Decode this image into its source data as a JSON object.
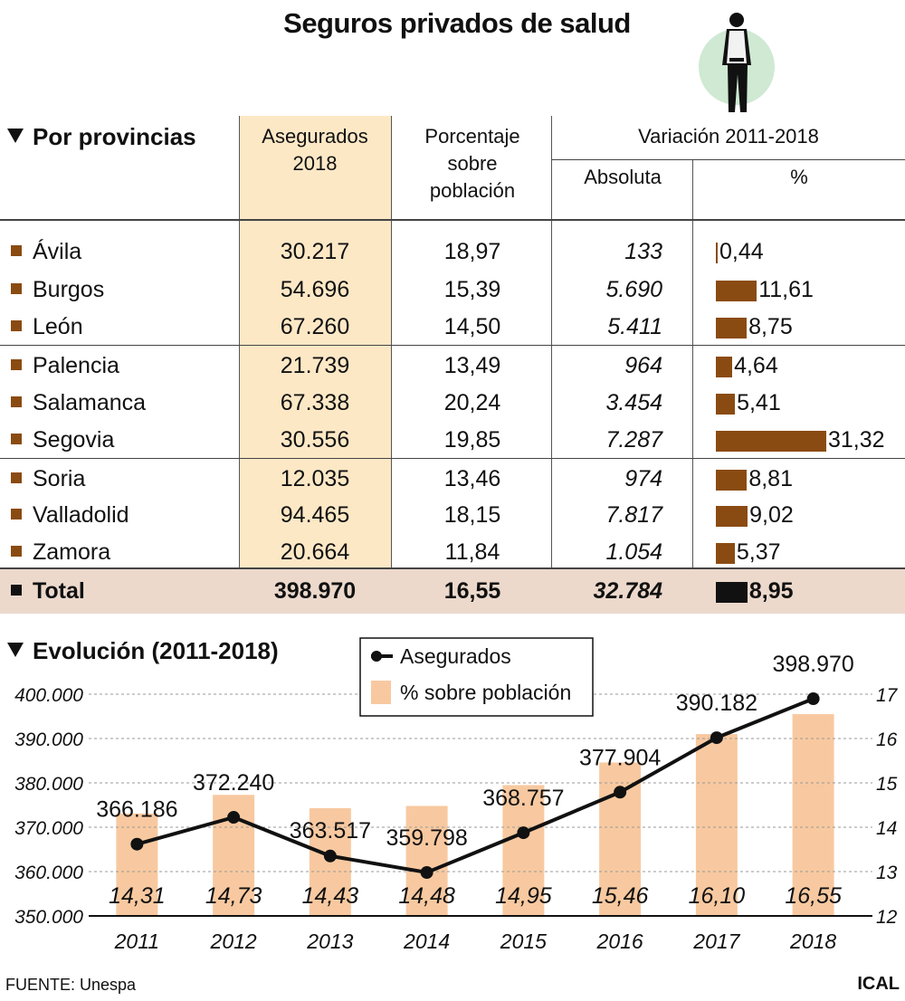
{
  "title": "Seguros privados de salud",
  "table": {
    "section_title": "Por provincias",
    "headers": {
      "asegurados": [
        "Asegurados",
        "2018"
      ],
      "porcentaje": [
        "Porcentaje",
        "sobre",
        "población"
      ],
      "variacion": "Variación 2011-2018",
      "absoluta": "Absoluta",
      "pct": "%"
    },
    "rows": [
      {
        "name": "Ávila",
        "asegurados": "30.217",
        "porcentaje": "18,97",
        "absoluta": "133",
        "var_pct": "0,44",
        "var_value": 0.44
      },
      {
        "name": "Burgos",
        "asegurados": "54.696",
        "porcentaje": "15,39",
        "absoluta": "5.690",
        "var_pct": "11,61",
        "var_value": 11.61
      },
      {
        "name": "León",
        "asegurados": "67.260",
        "porcentaje": "14,50",
        "absoluta": "5.411",
        "var_pct": "8,75",
        "var_value": 8.75
      },
      {
        "name": "Palencia",
        "asegurados": "21.739",
        "porcentaje": "13,49",
        "absoluta": "964",
        "var_pct": "4,64",
        "var_value": 4.64
      },
      {
        "name": "Salamanca",
        "asegurados": "67.338",
        "porcentaje": "20,24",
        "absoluta": "3.454",
        "var_pct": "5,41",
        "var_value": 5.41
      },
      {
        "name": "Segovia",
        "asegurados": "30.556",
        "porcentaje": "19,85",
        "absoluta": "7.287",
        "var_pct": "31,32",
        "var_value": 31.32
      },
      {
        "name": "Soria",
        "asegurados": "12.035",
        "porcentaje": "13,46",
        "absoluta": "974",
        "var_pct": "8,81",
        "var_value": 8.81
      },
      {
        "name": "Valladolid",
        "asegurados": "94.465",
        "porcentaje": "18,15",
        "absoluta": "7.817",
        "var_pct": "9,02",
        "var_value": 9.02
      },
      {
        "name": "Zamora",
        "asegurados": "20.664",
        "porcentaje": "11,84",
        "absoluta": "1.054",
        "var_pct": "5,37",
        "var_value": 5.37
      }
    ],
    "total": {
      "name": "Total",
      "asegurados": "398.970",
      "porcentaje": "16,55",
      "absoluta": "32.784",
      "var_pct": "8,95",
      "var_value": 8.95
    }
  },
  "chart_data": {
    "type": "bar+line",
    "title": "Evolución (2011-2018)",
    "categories": [
      "2011",
      "2012",
      "2013",
      "2014",
      "2015",
      "2016",
      "2017",
      "2018"
    ],
    "series": [
      {
        "name": "Asegurados",
        "kind": "line",
        "axis": "left",
        "values": [
          366186,
          372240,
          363517,
          359798,
          368757,
          377904,
          390182,
          398970
        ],
        "labels": [
          "366.186",
          "372.240",
          "363.517",
          "359.798",
          "368.757",
          "377.904",
          "390.182",
          "398.970"
        ]
      },
      {
        "name": "% sobre población",
        "kind": "bar",
        "axis": "right",
        "values": [
          14.31,
          14.73,
          14.43,
          14.48,
          14.95,
          15.46,
          16.1,
          16.55
        ],
        "labels": [
          "14,31",
          "14,73",
          "14,43",
          "14,48",
          "14,95",
          "15,46",
          "16,10",
          "16,55"
        ]
      }
    ],
    "left_axis": {
      "range": [
        350000,
        400000
      ],
      "ticks": [
        "350.000",
        "360.000",
        "370.000",
        "380.000",
        "390.000",
        "400.000"
      ]
    },
    "right_axis": {
      "range": [
        12,
        17
      ],
      "ticks": [
        "12",
        "13",
        "14",
        "15",
        "16",
        "17"
      ]
    },
    "grid": true,
    "legend": "top-center",
    "colors": {
      "line": "#111111",
      "bar": "#f8c9a0"
    }
  },
  "footer": {
    "source": "FUENTE: Unespa",
    "agency": "ICAL"
  }
}
